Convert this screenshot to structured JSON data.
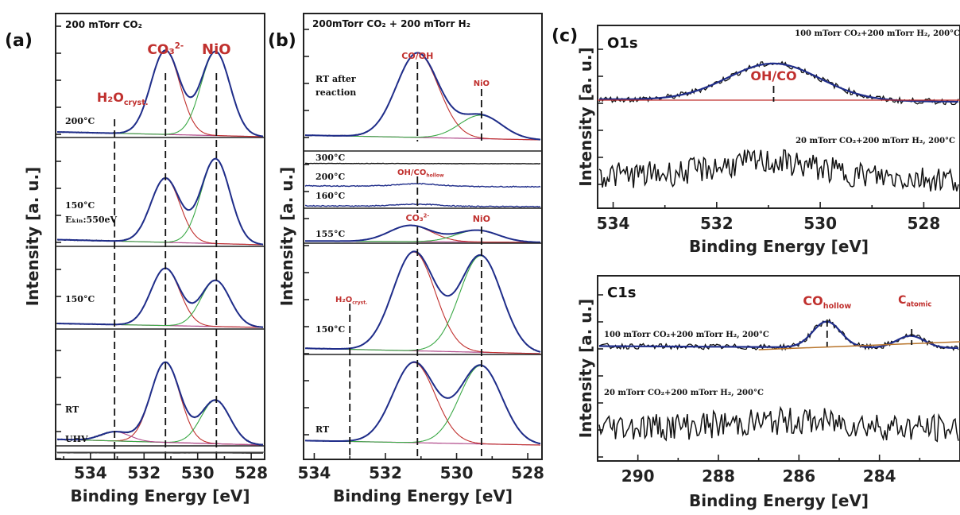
{
  "chart_data": [
    {
      "type": "line",
      "panel_label": "(a)",
      "title": "200 mTorr CO₂",
      "xlabel": "Binding Energy [eV]",
      "ylabel": "Intensity [a. u.]",
      "xlim": [
        535.3,
        527.5
      ],
      "xticks": [
        534,
        532,
        530,
        528
      ],
      "annotations": [
        {
          "text": "H₂O",
          "sub": "cryst.",
          "x": 533.1
        },
        {
          "text": "CO₃",
          "sup": "2-",
          "x": 531.2
        },
        {
          "text": "NiO",
          "x": 529.3
        }
      ],
      "series": [
        {
          "label": "200°C",
          "peaks": [
            {
              "center": 531.2,
              "height": 0.88
            },
            {
              "center": 529.3,
              "height": 0.88
            }
          ]
        },
        {
          "label": "150°C",
          "label2": "Eₖᵢₙ:550eV",
          "peaks": [
            {
              "center": 531.2,
              "height": 0.62
            },
            {
              "center": 529.3,
              "height": 0.82
            }
          ]
        },
        {
          "label": "150°C",
          "peaks": [
            {
              "center": 531.2,
              "height": 0.72
            },
            {
              "center": 529.3,
              "height": 0.58
            }
          ]
        },
        {
          "label": "RT",
          "peaks": [
            {
              "center": 531.2,
              "height": 0.7
            },
            {
              "center": 529.3,
              "height": 0.38
            },
            {
              "center": 533.1,
              "height": 0.08
            }
          ]
        },
        {
          "label": "UHV",
          "peaks": [
            {
              "center": 529.3,
              "height": 0.02
            }
          ]
        }
      ]
    },
    {
      "type": "line",
      "panel_label": "(b)",
      "title": "200mTorr CO₂ + 200 mTorr H₂",
      "xlabel": "Binding Energy [eV]",
      "ylabel": "Intensity [a. u.]",
      "xlim": [
        534.3,
        527.6
      ],
      "xticks": [
        534,
        532,
        530,
        528
      ],
      "annotations": [
        {
          "text": "CO/OH",
          "x": 531.1
        },
        {
          "text": "NiO",
          "x": 529.3
        },
        {
          "text": "OH/CO",
          "sub": "hollow",
          "x": 531.1
        },
        {
          "text": "CO₃",
          "sup": "2-",
          "x": 531.1
        },
        {
          "text": "NiO",
          "x": 529.3
        },
        {
          "text": "H₂O",
          "sub": "cryst.",
          "x": 533.0
        }
      ],
      "series": [
        {
          "label": "RT after",
          "label2": "reaction",
          "peaks": [
            {
              "center": 531.1,
              "height": 0.9
            },
            {
              "center": 529.3,
              "height": 0.25
            }
          ]
        },
        {
          "label": "300°C",
          "peaks": [
            {
              "center": 531.1,
              "height": 0.0
            }
          ]
        },
        {
          "label": "200°C",
          "peaks": [
            {
              "center": 531.1,
              "height": 0.15
            }
          ]
        },
        {
          "label": "160°C",
          "peaks": [
            {
              "center": 531.1,
              "height": 0.12
            }
          ]
        },
        {
          "label": "155°C",
          "peaks": [
            {
              "center": 531.3,
              "height": 0.55
            },
            {
              "center": 529.4,
              "height": 0.4
            }
          ]
        },
        {
          "label": "150°C",
          "peaks": [
            {
              "center": 531.2,
              "height": 0.92
            },
            {
              "center": 529.3,
              "height": 0.9
            }
          ]
        },
        {
          "label": "RT",
          "peaks": [
            {
              "center": 531.2,
              "height": 0.9
            },
            {
              "center": 529.3,
              "height": 0.88
            }
          ]
        }
      ]
    },
    {
      "type": "line",
      "panel_label": "(c)",
      "core_level": "O1s",
      "xlabel": "Binding Energy [eV]",
      "ylabel": "Intensity [a. u.]",
      "xlim": [
        534.3,
        527.3
      ],
      "xticks": [
        534,
        532,
        530,
        528
      ],
      "annotations": [
        {
          "text": "OH/CO",
          "x": 530.9
        }
      ],
      "series": [
        {
          "label": "100 mTorr CO₂+200 mTorr H₂, 200°C",
          "peaks": [
            {
              "center": 530.9,
              "height": 0.75
            }
          ]
        },
        {
          "label": "20 mTorr CO₂+200 mTorr H₂, 200°C",
          "peaks": [
            {
              "center": 531.0,
              "height": 0.2
            }
          ]
        }
      ]
    },
    {
      "type": "line",
      "core_level": "C1s",
      "xlabel": "Binding Energy [eV]",
      "ylabel": "Intensity [a. u.]",
      "xlim": [
        291.0,
        282.0
      ],
      "xticks": [
        290,
        288,
        286,
        284
      ],
      "annotations": [
        {
          "text": "CO",
          "sub": "hollow",
          "x": 285.3
        },
        {
          "text": "C",
          "sub": "atomic",
          "x": 283.2
        }
      ],
      "series": [
        {
          "label": "100 mTorr CO₂+200 mTorr H₂, 200°C",
          "peaks": [
            {
              "center": 285.3,
              "height": 0.65
            },
            {
              "center": 283.2,
              "height": 0.3
            }
          ]
        },
        {
          "label": "20 mTorr CO₂+200 mTorr H₂, 200°C",
          "peaks": [
            {
              "center": 286.0,
              "height": 0.12
            }
          ]
        }
      ]
    }
  ],
  "colors": {
    "envelope": "#1f2d8a",
    "peak_red": "#c0302e",
    "peak_green": "#3aa845",
    "background": "#b04a8a",
    "raw": "#111111"
  }
}
